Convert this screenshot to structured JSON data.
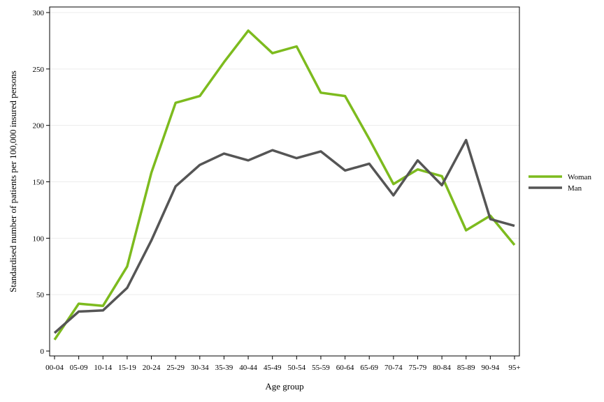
{
  "chart_data": {
    "type": "line",
    "title": "",
    "xlabel": "Age group",
    "ylabel": "Standardised number of patients per 100,000 insured persons",
    "categories": [
      "00-04",
      "05-09",
      "10-14",
      "15-19",
      "20-24",
      "25-29",
      "30-34",
      "35-39",
      "40-44",
      "45-49",
      "50-54",
      "55-59",
      "60-64",
      "65-69",
      "70-74",
      "75-79",
      "80-84",
      "85-89",
      "90-94",
      "95+"
    ],
    "ylim": [
      0,
      300
    ],
    "yticks": [
      0,
      50,
      100,
      150,
      200,
      250,
      300
    ],
    "grid": "horizontal",
    "legend_position": "right",
    "series": [
      {
        "name": "Woman",
        "color": "#7dbb1e",
        "values": [
          10,
          42,
          40,
          75,
          158,
          220,
          226,
          256,
          284,
          264,
          270,
          229,
          226,
          188,
          148,
          161,
          155,
          107,
          120,
          94
        ]
      },
      {
        "name": "Man",
        "color": "#555555",
        "values": [
          16,
          35,
          36,
          56,
          98,
          146,
          165,
          175,
          169,
          178,
          171,
          177,
          160,
          166,
          138,
          169,
          147,
          187,
          117,
          111
        ]
      }
    ]
  }
}
